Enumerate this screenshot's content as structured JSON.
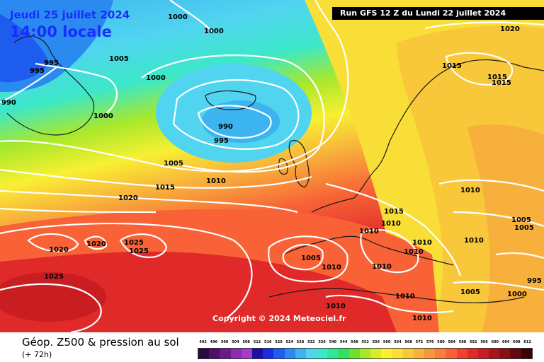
{
  "header": {
    "date": "Jeudi 25 juillet 2024",
    "time": "14:00 locale",
    "run": "Run GFS 12 Z du Lundi 22 juillet 2024"
  },
  "copyright": "Copyright © 2024 Meteociel.fr",
  "footer": {
    "title": "Géop. Z500 & pression au sol",
    "subtitle": "(+ 72h)"
  },
  "legend": {
    "labels": [
      "492",
      "496",
      "500",
      "504",
      "508",
      "512",
      "516",
      "520",
      "524",
      "528",
      "532",
      "536",
      "540",
      "544",
      "548",
      "552",
      "556",
      "560",
      "564",
      "568",
      "572",
      "576",
      "580",
      "584",
      "588",
      "592",
      "596",
      "600",
      "604",
      "608",
      "612"
    ],
    "colors": [
      "#2b0a3d",
      "#4d1166",
      "#6b1a8a",
      "#8a2bb0",
      "#a03cc8",
      "#1a0fa0",
      "#1a2ce0",
      "#1e5cf0",
      "#2a8af0",
      "#3cb4f0",
      "#50d4f0",
      "#3ce8c8",
      "#2ee89a",
      "#30e060",
      "#6ee030",
      "#a8e82a",
      "#d8ec28",
      "#f8f032",
      "#f8de36",
      "#f8c83a",
      "#f8b03c",
      "#f8983c",
      "#f8803a",
      "#f86236",
      "#f04030",
      "#e02a2a",
      "#c81e22",
      "#a8161c",
      "#861016",
      "#640a0e",
      "#3a0404"
    ]
  },
  "isobars": [
    "1000",
    "1000",
    "995",
    "990",
    "1005",
    "995",
    "1000",
    "1000",
    "990",
    "995",
    "1005",
    "1015",
    "1010",
    "1020",
    "1025",
    "1020",
    "1020",
    "1025",
    "1025",
    "1005",
    "1010",
    "1010",
    "1010",
    "1015",
    "1010",
    "1010",
    "1010",
    "1010",
    "1010",
    "1010",
    "1010",
    "1020",
    "1015",
    "1015",
    "1015",
    "1010",
    "1005",
    "1005",
    "1000",
    "995",
    "1005"
  ]
}
